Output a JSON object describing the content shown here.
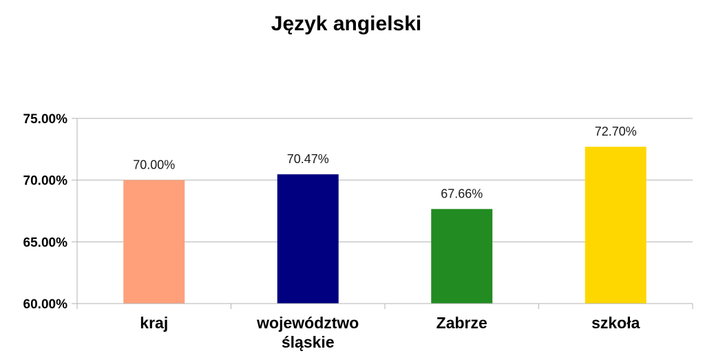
{
  "chart_data": {
    "type": "bar",
    "title": "Język angielski",
    "xlabel": "",
    "ylabel": "",
    "categories": [
      [
        "kraj"
      ],
      [
        "województwo",
        "śląskie"
      ],
      [
        "Zabrze"
      ],
      [
        "szkoła"
      ]
    ],
    "values": [
      70.0,
      70.47,
      67.66,
      72.7
    ],
    "value_labels": [
      "70.00%",
      "70.47%",
      "67.66%",
      "72.70%"
    ],
    "colors": [
      "#FFA07A",
      "#000080",
      "#228B22",
      "#FFD700"
    ],
    "ylim": [
      60,
      75
    ],
    "yticks": [
      60,
      65,
      70,
      75
    ],
    "ytick_labels": [
      "60.00%",
      "65.00%",
      "70.00%",
      "75.00%"
    ],
    "grid": true,
    "legend": "none"
  }
}
